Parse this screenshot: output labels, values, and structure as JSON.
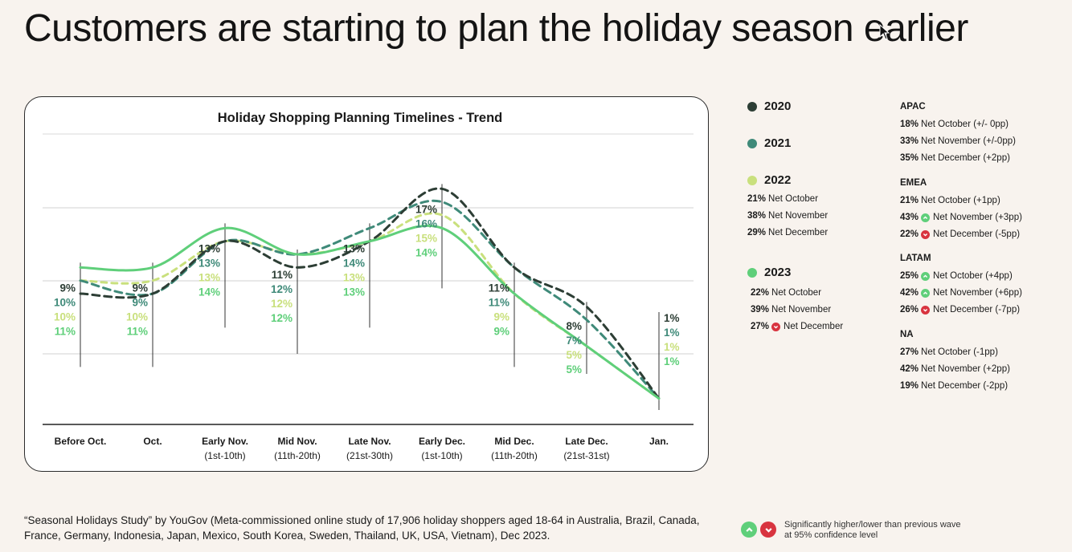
{
  "page_title": "Customers are starting to plan the holiday season earlier",
  "colors": {
    "y2020": "#2d3e35",
    "y2021": "#3f8a79",
    "y2022": "#c9e07d",
    "y2023": "#5fcf7a",
    "up": "#5fcf7a",
    "down": "#d8343f"
  },
  "chart_data": {
    "type": "line",
    "title": "Holiday Shopping Planning Timelines - Trend",
    "categories": [
      "Before Oct.",
      "Oct.",
      "Early Nov.",
      "Mid Nov.",
      "Late Nov.",
      "Early Dec.",
      "Mid Dec.",
      "Late Dec.",
      "Jan."
    ],
    "sublabels": [
      "",
      "",
      "(1st-10th)",
      "(11th-20th)",
      "(21st-30th)",
      "(1st-10th)",
      "(11th-20th)",
      "(21st-31st)",
      ""
    ],
    "series": [
      {
        "name": "2020",
        "values": [
          9,
          9,
          13,
          11,
          13,
          17,
          11,
          8,
          1
        ]
      },
      {
        "name": "2021",
        "values": [
          10,
          9,
          13,
          12,
          14,
          16,
          11,
          7,
          1
        ]
      },
      {
        "name": "2022",
        "values": [
          10,
          10,
          13,
          12,
          13,
          15,
          9,
          5,
          1
        ]
      },
      {
        "name": "2023",
        "values": [
          11,
          11,
          14,
          12,
          13,
          14,
          9,
          5,
          1
        ]
      }
    ],
    "grid": true,
    "legend": "right"
  },
  "legend": {
    "y2020": "2020",
    "y2021": "2021",
    "y2022": "2022",
    "y2023": "2023",
    "y2022_nets": [
      {
        "pct": "21%",
        "text": "Net October"
      },
      {
        "pct": "38%",
        "text": "Net November"
      },
      {
        "pct": "29%",
        "text": "Net December"
      }
    ],
    "y2023_nets": [
      {
        "pct": "22%",
        "text": "Net October"
      },
      {
        "pct": "39%",
        "text": "Net November"
      },
      {
        "pct": "27%",
        "text": "Net December",
        "arrow": "down"
      }
    ]
  },
  "regions": [
    {
      "name": "APAC",
      "nets": [
        {
          "pct": "18%",
          "text": "Net October (+/- 0pp)"
        },
        {
          "pct": "33%",
          "text": "Net November (+/-0pp)"
        },
        {
          "pct": "35%",
          "text": "Net December (+2pp)"
        }
      ]
    },
    {
      "name": "EMEA",
      "nets": [
        {
          "pct": "21%",
          "text": "Net October (+1pp)"
        },
        {
          "pct": "43%",
          "text": "Net November (+3pp)",
          "arrow": "up"
        },
        {
          "pct": "22%",
          "text": "Net December (-5pp)",
          "arrow": "down"
        }
      ]
    },
    {
      "name": "LATAM",
      "nets": [
        {
          "pct": "25%",
          "text": "Net October (+4pp)",
          "arrow": "up"
        },
        {
          "pct": "42%",
          "text": "Net November (+6pp)",
          "arrow": "up"
        },
        {
          "pct": "26%",
          "text": "Net December (-7pp)",
          "arrow": "down"
        }
      ]
    },
    {
      "name": "NA",
      "nets": [
        {
          "pct": "27%",
          "text": "Net October (-1pp)"
        },
        {
          "pct": "42%",
          "text": "Net November (+2pp)"
        },
        {
          "pct": "19%",
          "text": "Net December (-2pp)"
        }
      ]
    }
  ],
  "footnote": "“Seasonal Holidays Study” by YouGov (Meta-commissioned online study of 17,906 holiday shoppers aged 18-64 in Australia, Brazil, Canada, France, Germany, Indonesia, Japan, Mexico, South Korea, Sweden, Thailand, UK, USA, Vietnam), Dec 2023.",
  "significance_note": "Significantly higher/lower than previous wave at 95% confidence level"
}
